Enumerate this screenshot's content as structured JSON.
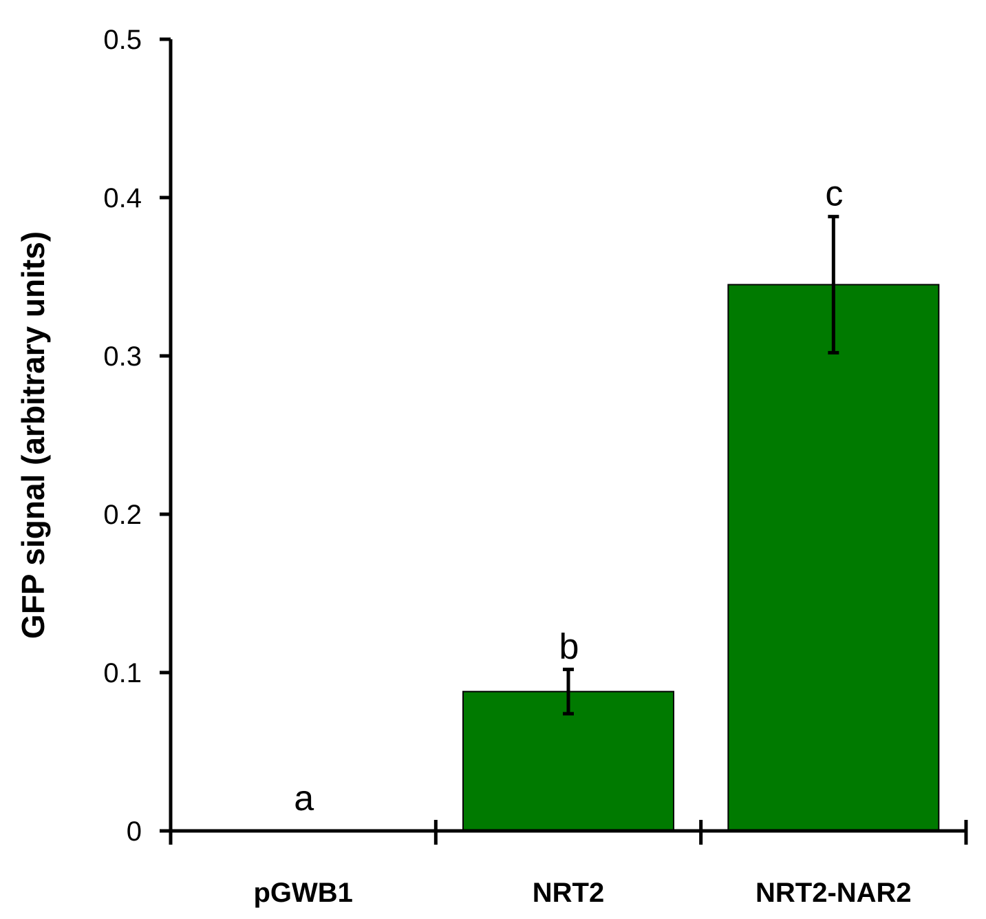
{
  "chart_data": {
    "type": "bar",
    "ylabel": "GFP signal (arbitrary units)",
    "xlabel": "",
    "ylim": [
      0,
      0.5
    ],
    "yticks": [
      0,
      0.1,
      0.2,
      0.3,
      0.4,
      0.5
    ],
    "ytick_labels": [
      "0",
      "0.1",
      "0.2",
      "0.3",
      "0.4",
      "0.5"
    ],
    "grid": false,
    "legend": "none",
    "categories": [
      "pGWB1",
      "NRT2",
      "NRT2-NAR2"
    ],
    "series": [
      {
        "values": [
          0,
          0.088,
          0.345
        ],
        "error": [
          0,
          0.014,
          0.043
        ],
        "significance": [
          "a",
          "b",
          "c"
        ]
      }
    ],
    "colors": {
      "bar": "#007A00",
      "bar_edge": "#000000",
      "axis": "#000000"
    }
  }
}
